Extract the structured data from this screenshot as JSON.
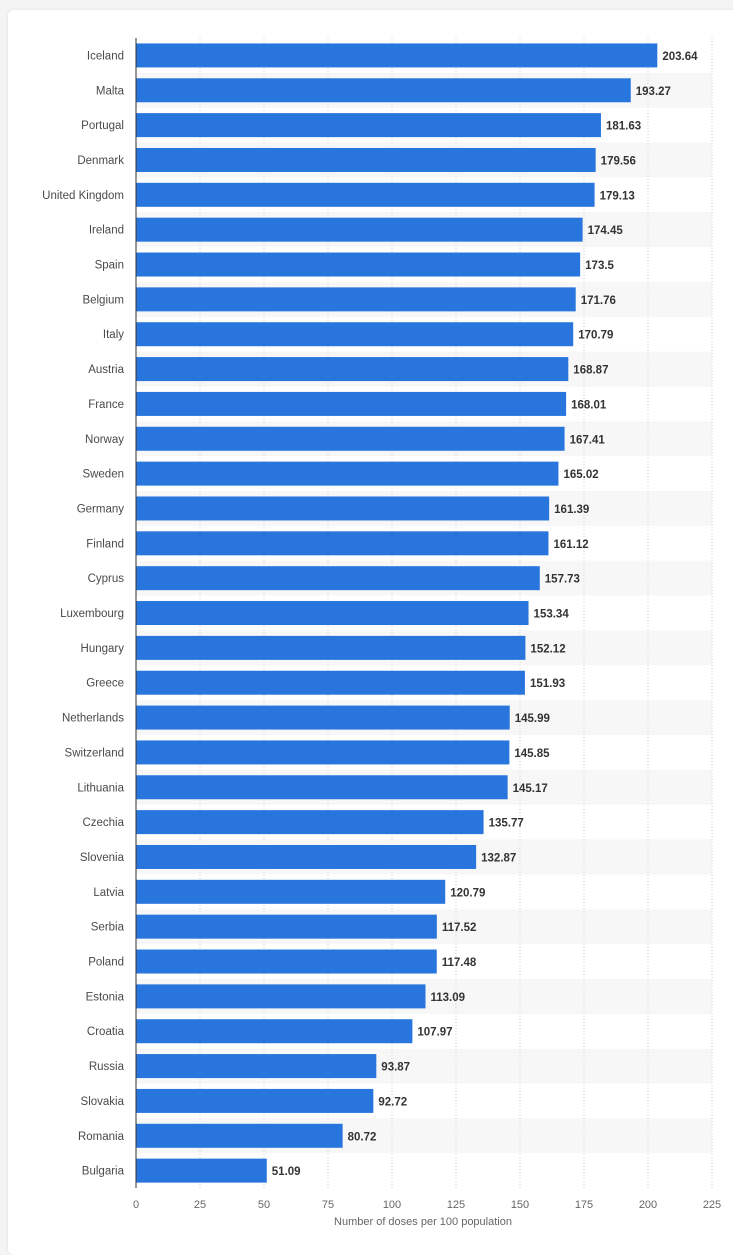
{
  "chart_data": {
    "type": "bar",
    "orientation": "horizontal",
    "title": "",
    "xlabel": "Number of doses per 100 population",
    "ylabel": "",
    "xlim": [
      0,
      225
    ],
    "xticks": [
      0,
      25,
      50,
      75,
      100,
      125,
      150,
      175,
      200,
      225
    ],
    "categories": [
      "Iceland",
      "Malta",
      "Portugal",
      "Denmark",
      "United Kingdom",
      "Ireland",
      "Spain",
      "Belgium",
      "Italy",
      "Austria",
      "France",
      "Norway",
      "Sweden",
      "Germany",
      "Finland",
      "Cyprus",
      "Luxembourg",
      "Hungary",
      "Greece",
      "Netherlands",
      "Switzerland",
      "Lithuania",
      "Czechia",
      "Slovenia",
      "Latvia",
      "Serbia",
      "Poland",
      "Estonia",
      "Croatia",
      "Russia",
      "Slovakia",
      "Romania",
      "Bulgaria"
    ],
    "values": [
      203.64,
      193.27,
      181.63,
      179.56,
      179.13,
      174.45,
      173.5,
      171.76,
      170.79,
      168.87,
      168.01,
      167.41,
      165.02,
      161.39,
      161.12,
      157.73,
      153.34,
      152.12,
      151.93,
      145.99,
      145.85,
      145.17,
      135.77,
      132.87,
      120.79,
      117.52,
      117.48,
      113.09,
      107.97,
      93.87,
      92.72,
      80.72,
      51.09
    ],
    "bar_color": "#2876dd",
    "stripe_color": "#f7f7f7",
    "grid": true
  }
}
